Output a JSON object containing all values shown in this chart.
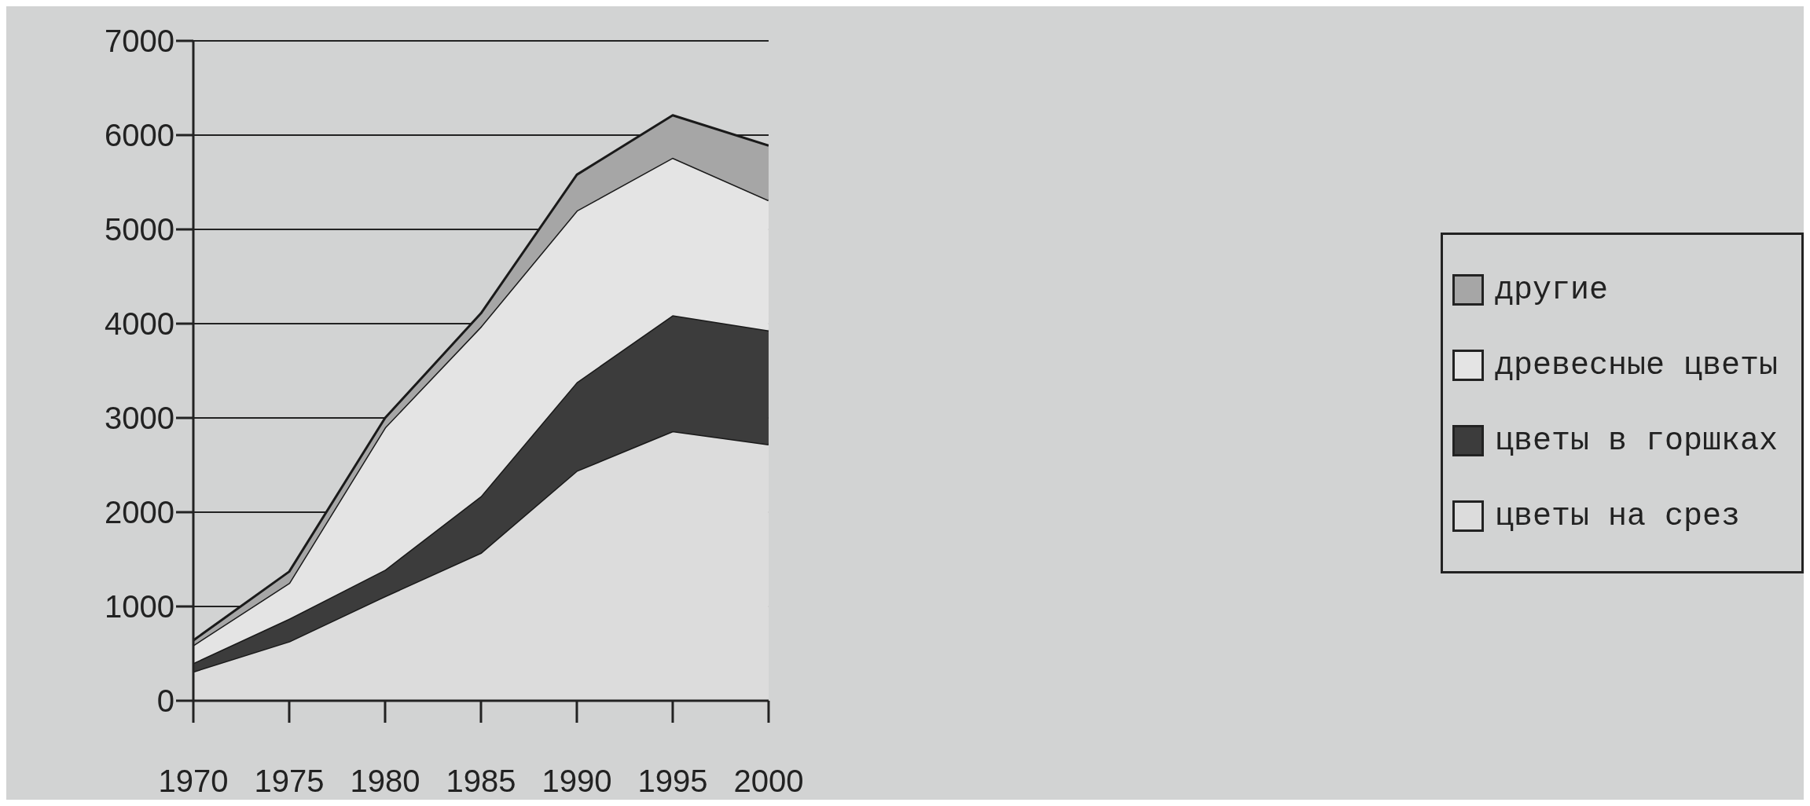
{
  "chart_data": {
    "type": "area",
    "stacked": true,
    "x": [
      1970,
      1975,
      1980,
      1985,
      1990,
      1995,
      2000
    ],
    "xlim": [
      1970,
      2000
    ],
    "xticks": [
      1970,
      1975,
      1980,
      1985,
      1990,
      1995,
      2000
    ],
    "ylim": [
      0,
      7000
    ],
    "yticks": [
      0,
      1000,
      2000,
      3000,
      4000,
      5000,
      6000,
      7000
    ],
    "grid": "y",
    "legend": "right",
    "series": [
      {
        "name": "цветы на срез",
        "color": "#dcdcdc",
        "values": [
          310,
          630,
          1110,
          1570,
          2440,
          2860,
          2720
        ]
      },
      {
        "name": "цветы в горшках",
        "color": "#3c3c3c",
        "values": [
          90,
          240,
          280,
          600,
          940,
          1230,
          1210
        ]
      },
      {
        "name": "древесные цветы",
        "color": "#e4e4e4",
        "values": [
          190,
          380,
          1510,
          1800,
          1820,
          1670,
          1380
        ]
      },
      {
        "name": "другие",
        "color": "#a6a6a6",
        "values": [
          50,
          120,
          100,
          140,
          380,
          450,
          580
        ]
      }
    ]
  }
}
